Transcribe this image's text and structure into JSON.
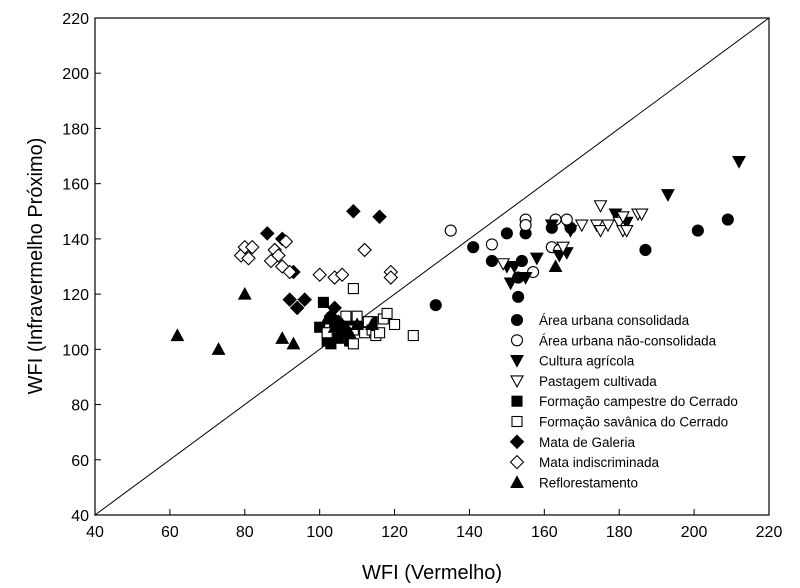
{
  "chart_data": {
    "type": "scatter",
    "xlabel": "WFI (Vermelho)",
    "ylabel": "WFI  (Infravermelho Próximo)",
    "xlim": [
      40,
      220
    ],
    "ylim": [
      40,
      220
    ],
    "xticks": [
      40,
      60,
      80,
      100,
      120,
      140,
      160,
      180,
      200,
      220
    ],
    "yticks": [
      40,
      60,
      80,
      100,
      120,
      140,
      160,
      180,
      200,
      220
    ],
    "grid": false,
    "legend_position": "bottom-right",
    "reference_line": {
      "type": "identity",
      "from": [
        40,
        40
      ],
      "to": [
        220,
        220
      ]
    },
    "series": [
      {
        "name": "Área urbana consolidada",
        "marker": "circle",
        "filled": true,
        "points": [
          [
            131,
            116
          ],
          [
            141,
            137
          ],
          [
            146,
            132
          ],
          [
            150,
            142
          ],
          [
            153,
            126
          ],
          [
            153,
            119
          ],
          [
            154,
            132
          ],
          [
            155,
            142
          ],
          [
            162,
            144
          ],
          [
            167,
            144
          ],
          [
            187,
            136
          ],
          [
            201,
            143
          ],
          [
            209,
            147
          ]
        ]
      },
      {
        "name": "Área urbana não-consolidada",
        "marker": "circle",
        "filled": false,
        "points": [
          [
            135,
            143
          ],
          [
            146,
            138
          ],
          [
            155,
            147
          ],
          [
            155,
            145
          ],
          [
            157,
            128
          ],
          [
            162,
            137
          ],
          [
            163,
            147
          ],
          [
            164,
            136
          ],
          [
            166,
            147
          ]
        ]
      },
      {
        "name": "Cultura agrícola",
        "marker": "triangle-down",
        "filled": true,
        "points": [
          [
            150,
            130
          ],
          [
            151,
            124
          ],
          [
            152,
            130
          ],
          [
            155,
            126
          ],
          [
            158,
            133
          ],
          [
            162,
            145
          ],
          [
            164,
            134
          ],
          [
            166,
            135
          ],
          [
            167,
            143
          ],
          [
            179,
            149
          ],
          [
            182,
            146
          ],
          [
            193,
            156
          ],
          [
            212,
            168
          ]
        ]
      },
      {
        "name": "Pastagem cultivada",
        "marker": "triangle-down",
        "filled": false,
        "points": [
          [
            149,
            131
          ],
          [
            165,
            137
          ],
          [
            170,
            145
          ],
          [
            174,
            145
          ],
          [
            175,
            143
          ],
          [
            175,
            152
          ],
          [
            177,
            145
          ],
          [
            180,
            146
          ],
          [
            181,
            148
          ],
          [
            181,
            143
          ],
          [
            182,
            143
          ],
          [
            185,
            149
          ],
          [
            186,
            149
          ]
        ]
      },
      {
        "name": "Formação campestre do Cerrado",
        "marker": "square",
        "filled": true,
        "points": [
          [
            100,
            108
          ],
          [
            101,
            117
          ],
          [
            102,
            106
          ],
          [
            102,
            103
          ],
          [
            103,
            102
          ],
          [
            104,
            110
          ],
          [
            105,
            104
          ],
          [
            106,
            107
          ],
          [
            107,
            106
          ],
          [
            108,
            103
          ],
          [
            108,
            109
          ],
          [
            110,
            109
          ],
          [
            112,
            108
          ],
          [
            114,
            110
          ]
        ]
      },
      {
        "name": "Formação savânica do Cerrado",
        "marker": "square",
        "filled": false,
        "points": [
          [
            102,
            106
          ],
          [
            107,
            112
          ],
          [
            109,
            107
          ],
          [
            109,
            102
          ],
          [
            109,
            122
          ],
          [
            110,
            112
          ],
          [
            112,
            106
          ],
          [
            113,
            110
          ],
          [
            114,
            107
          ],
          [
            115,
            105
          ],
          [
            116,
            106
          ],
          [
            117,
            111
          ],
          [
            118,
            113
          ],
          [
            120,
            109
          ],
          [
            125,
            105
          ]
        ]
      },
      {
        "name": "Mata de Galeria",
        "marker": "diamond",
        "filled": true,
        "points": [
          [
            86,
            142
          ],
          [
            90,
            140
          ],
          [
            92,
            118
          ],
          [
            93,
            128
          ],
          [
            94,
            115
          ],
          [
            96,
            118
          ],
          [
            103,
            112
          ],
          [
            104,
            115
          ],
          [
            105,
            110
          ],
          [
            106,
            108
          ],
          [
            109,
            150
          ],
          [
            116,
            148
          ]
        ]
      },
      {
        "name": "Mata indiscriminada",
        "marker": "diamond",
        "filled": false,
        "points": [
          [
            79,
            134
          ],
          [
            80,
            137
          ],
          [
            81,
            133
          ],
          [
            82,
            137
          ],
          [
            87,
            132
          ],
          [
            88,
            136
          ],
          [
            89,
            134
          ],
          [
            90,
            130
          ],
          [
            91,
            139
          ],
          [
            92,
            128
          ],
          [
            100,
            127
          ],
          [
            104,
            126
          ],
          [
            106,
            127
          ],
          [
            112,
            136
          ],
          [
            119,
            128
          ],
          [
            119,
            126
          ]
        ]
      },
      {
        "name": "Reflorestamento",
        "marker": "triangle-up",
        "filled": true,
        "points": [
          [
            62,
            105
          ],
          [
            73,
            100
          ],
          [
            80,
            120
          ],
          [
            90,
            104
          ],
          [
            93,
            102
          ],
          [
            102,
            111
          ],
          [
            104,
            108
          ],
          [
            106,
            109
          ],
          [
            108,
            106
          ],
          [
            110,
            109
          ],
          [
            114,
            109
          ],
          [
            163,
            130
          ]
        ]
      }
    ]
  }
}
